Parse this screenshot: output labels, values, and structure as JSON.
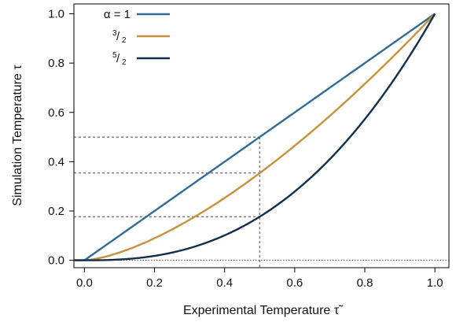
{
  "chart_data": {
    "type": "line",
    "title": "",
    "xlabel": "Experimental Temperature τ̃",
    "ylabel": "Simulation Temperature τ",
    "xlim": [
      -0.03,
      1.04
    ],
    "ylim": [
      -0.03,
      1.04
    ],
    "xticks": [
      0.0,
      0.2,
      0.4,
      0.6,
      0.8,
      1.0
    ],
    "yticks": [
      0.0,
      0.2,
      0.4,
      0.6,
      0.8,
      1.0
    ],
    "xtick_labels": [
      "0.0",
      "0.2",
      "0.4",
      "0.6",
      "0.8",
      "1.0"
    ],
    "ytick_labels": [
      "0.0",
      "0.2",
      "0.4",
      "0.6",
      "0.8",
      "1.0"
    ],
    "grid": false,
    "legend_position": "top-left",
    "series": [
      {
        "name": "α = 1",
        "exponent": 1,
        "color": "#336b96",
        "x": [
          0.0,
          0.1,
          0.2,
          0.3,
          0.4,
          0.5,
          0.6,
          0.7,
          0.8,
          0.9,
          1.0
        ],
        "y": [
          0.0,
          0.1,
          0.2,
          0.3,
          0.4,
          0.5,
          0.6,
          0.7,
          0.8,
          0.9,
          1.0
        ]
      },
      {
        "name": "3/2",
        "exponent": 1.5,
        "label_num": "3",
        "label_den": "2",
        "color": "#c8913d",
        "x": [
          0.0,
          0.1,
          0.2,
          0.3,
          0.4,
          0.5,
          0.6,
          0.7,
          0.8,
          0.9,
          1.0
        ],
        "y": [
          0.0,
          0.032,
          0.089,
          0.164,
          0.253,
          0.354,
          0.465,
          0.586,
          0.716,
          0.854,
          1.0
        ]
      },
      {
        "name": "5/2",
        "exponent": 2.5,
        "label_num": "5",
        "label_den": "2",
        "color": "#10304d",
        "x": [
          0.0,
          0.1,
          0.2,
          0.3,
          0.4,
          0.5,
          0.6,
          0.7,
          0.8,
          0.9,
          1.0
        ],
        "y": [
          0.0,
          0.003,
          0.018,
          0.049,
          0.101,
          0.177,
          0.279,
          0.41,
          0.572,
          0.768,
          1.0
        ]
      }
    ],
    "flat_segment": {
      "x": [
        -0.03,
        0.0
      ],
      "y": 0.0
    },
    "reference_lines": {
      "baseline_y": 0.0,
      "vertical_x": 0.5,
      "horizontal_y": [
        0.5,
        0.354,
        0.177
      ]
    }
  }
}
